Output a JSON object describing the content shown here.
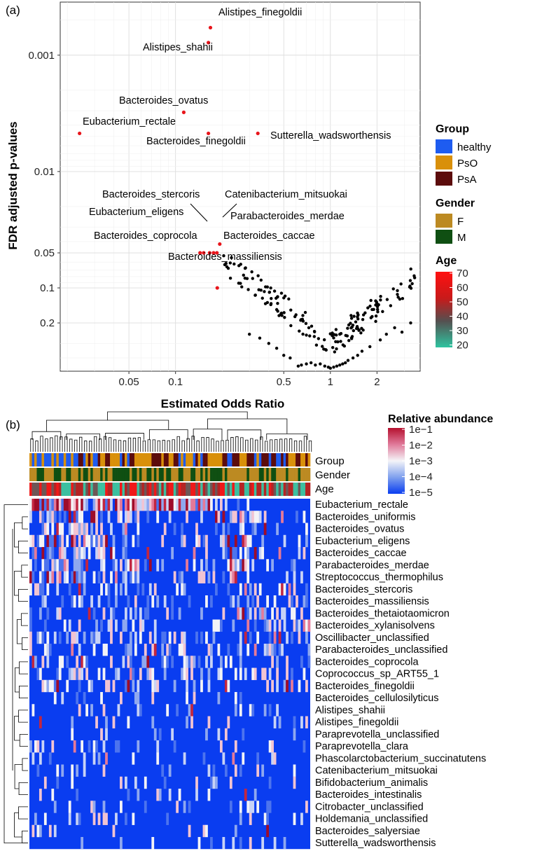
{
  "panel_a_label": "(a)",
  "panel_b_label": "(b)",
  "chart_data": [
    {
      "type": "scatter",
      "xlabel": "Estimated Odds Ratio",
      "ylabel": "FDR adjusted p-values",
      "x_scale": "log",
      "y_scale": "log-reversed",
      "xlim": [
        0.018,
        3.8
      ],
      "ylim": [
        0.52,
        0.00035
      ],
      "x_ticks": [
        {
          "v": 0.05,
          "label": "0.05"
        },
        {
          "v": 0.1,
          "label": "0.1"
        },
        {
          "v": 0.5,
          "label": "0.5"
        },
        {
          "v": 1,
          "label": "1"
        },
        {
          "v": 2,
          "label": "2"
        }
      ],
      "y_ticks": [
        {
          "v": 0.001,
          "label": "0.001"
        },
        {
          "v": 0.01,
          "label": "0.01"
        },
        {
          "v": 0.05,
          "label": "0.05"
        },
        {
          "v": 0.1,
          "label": "0.1"
        },
        {
          "v": 0.2,
          "label": "0.2"
        }
      ],
      "labeled_points": [
        {
          "name": "Alistipes_finegoldii",
          "or": 0.168,
          "p": 0.00058
        },
        {
          "name": "Alistipes_shahii",
          "or": 0.163,
          "p": 0.00078
        },
        {
          "name": "Bacteroides_ovatus",
          "or": 0.113,
          "p": 0.0031
        },
        {
          "name": "Eubacterium_rectale",
          "or": 0.024,
          "p": 0.0047
        },
        {
          "name": "Bacteroides_finegoldii",
          "or": 0.163,
          "p": 0.0047
        },
        {
          "name": "Sutterella_wadsworthensis",
          "or": 0.34,
          "p": 0.0047
        },
        {
          "name": "Bacteroides_stercoris",
          "or": 0.152,
          "p": 0.05
        },
        {
          "name": "Catenibacterium_mitsuokai",
          "or": 0.193,
          "p": 0.042
        },
        {
          "name": "Eubacterium_eligens",
          "or": 0.144,
          "p": 0.05
        },
        {
          "name": "Parabacteroides_merdae",
          "or": 0.176,
          "p": 0.05
        },
        {
          "name": "Bacteroides_coprocola",
          "or": 0.166,
          "p": 0.05
        },
        {
          "name": "Bacteroides_caccae",
          "or": 0.185,
          "p": 0.05
        },
        {
          "name": "Bacteroides_massiliensis",
          "or": 0.186,
          "p": 0.1
        }
      ],
      "legend": {
        "group_title": "Group",
        "group": [
          {
            "label": "healthy",
            "color": "#1E5CF0"
          },
          {
            "label": "PsO",
            "color": "#D9900A"
          },
          {
            "label": "PsA",
            "color": "#5C0C0C"
          }
        ],
        "gender_title": "Gender",
        "gender": [
          {
            "label": "F",
            "color": "#BC8A22"
          },
          {
            "label": "M",
            "color": "#0F4F12"
          }
        ],
        "age_title": "Age",
        "age_ticks": [
          "70",
          "60",
          "50",
          "40",
          "30",
          "20"
        ]
      }
    },
    {
      "type": "heatmap",
      "columns": 115,
      "annotation_tracks": [
        "Group",
        "Gender",
        "Age"
      ],
      "color_legend_title": "Relative abundance",
      "color_legend_ticks": [
        "1e−1",
        "1e−2",
        "1e−3",
        "1e−4",
        "1e−5"
      ],
      "rows": [
        "Eubacterium_rectale",
        "Bacteroides_uniformis",
        "Bacteroides_ovatus",
        "Eubacterium_eligens",
        "Bacteroides_caccae",
        "Parabacteroides_merdae",
        "Streptococcus_thermophilus",
        "Bacteroides_stercoris",
        "Bacteroides_massiliensis",
        "Bacteroides_thetaiotaomicron",
        "Bacteroides_xylanisolvens",
        "Oscillibacter_unclassified",
        "Parabacteroides_unclassified",
        "Bacteroides_coprocola",
        "Coprococcus_sp_ART55_1",
        "Bacteroides_finegoldii",
        "Bacteroides_cellulosilyticus",
        "Alistipes_shahii",
        "Alistipes_finegoldii",
        "Paraprevotella_unclassified",
        "Paraprevotella_clara",
        "Phascolarctobacterium_succinatutens",
        "Catenibacterium_mitsuokai",
        "Bifidobacterium_animalis",
        "Bacteroides_intestinalis",
        "Citrobacter_unclassified",
        "Holdemania_unclassified",
        "Bacteroides_salyersiae",
        "Sutterella_wadsworthensis"
      ]
    }
  ]
}
